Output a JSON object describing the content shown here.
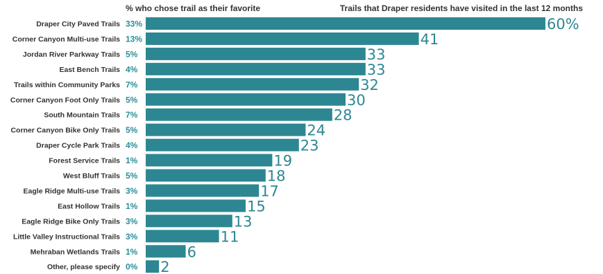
{
  "chart_data": {
    "type": "bar",
    "orientation": "horizontal",
    "favorite_header": "% who chose trail as their favorite",
    "visited_header": "Trails that Draper residents have visited in the last 12 months",
    "bar_color": "#2d8792",
    "accent_color": "#2a8f9a",
    "xlim": [
      0,
      60
    ],
    "categories": [
      "Draper City Paved Trails",
      "Corner Canyon Multi-use Trails",
      "Jordan River Parkway Trails",
      "East Bench Trails",
      "Trails within Community Parks",
      "Corner Canyon Foot Only Trails",
      "South Mountain Trails",
      "Corner Canyon Bike Only Trails",
      "Draper Cycle Park Trails",
      "Forest Service Trails",
      "West Bluff Trails",
      "Eagle Ridge Multi-use Trails",
      "East Hollow Trails",
      "Eagle Ridge Bike Only Trails",
      "Little Valley Instructional Trails",
      "Mehraban Wetlands Trails",
      "Other, please specify"
    ],
    "favorite_labels": [
      "33%",
      "13%",
      "5%",
      "4%",
      "7%",
      "5%",
      "7%",
      "5%",
      "4%",
      "1%",
      "5%",
      "3%",
      "1%",
      "3%",
      "3%",
      "1%",
      "0%"
    ],
    "values": [
      60,
      41,
      33,
      33,
      32,
      30,
      28,
      24,
      23,
      19,
      18,
      17,
      15,
      13,
      11,
      6,
      2
    ],
    "value_labels": [
      "60%",
      "41",
      "33",
      "33",
      "32",
      "30",
      "28",
      "24",
      "23",
      "19",
      "18",
      "17",
      "15",
      "13",
      "11",
      "6",
      "2"
    ]
  }
}
